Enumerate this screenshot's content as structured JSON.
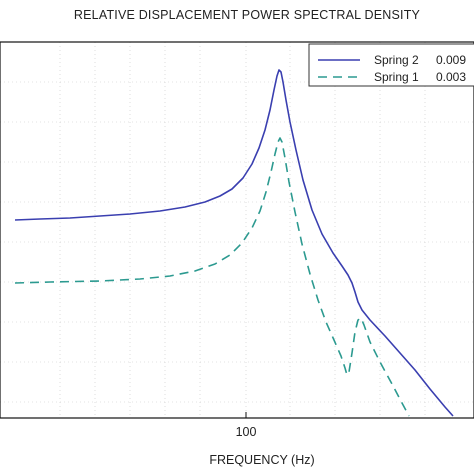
{
  "chart_data": {
    "type": "line",
    "title": "RELATIVE DISPLACEMENT  POWER SPECTRAL DENSITY",
    "xlabel": "FREQUENCY (Hz)",
    "ylabel": "",
    "x_scale": "log",
    "y_scale": "log",
    "x_ticks": [
      100
    ],
    "x_tick_labels": [
      "100"
    ],
    "grid": true,
    "legend_position": "top-right",
    "series": [
      {
        "name": "Spring 2",
        "legend_value": "0.009",
        "color": "#3a3fb0",
        "dash": "solid",
        "points": [
          [
            15,
            220
          ],
          [
            40,
            219
          ],
          [
            70,
            218
          ],
          [
            100,
            216
          ],
          [
            130,
            214
          ],
          [
            160,
            211
          ],
          [
            185,
            207
          ],
          [
            205,
            202
          ],
          [
            220,
            196
          ],
          [
            232,
            189
          ],
          [
            243,
            178
          ],
          [
            252,
            164
          ],
          [
            259,
            148
          ],
          [
            265,
            130
          ],
          [
            270,
            110
          ],
          [
            274,
            90
          ],
          [
            277,
            76
          ],
          [
            279,
            70
          ],
          [
            281,
            72
          ],
          [
            283,
            82
          ],
          [
            286,
            100
          ],
          [
            290,
            122
          ],
          [
            296,
            150
          ],
          [
            303,
            180
          ],
          [
            312,
            210
          ],
          [
            322,
            234
          ],
          [
            333,
            253
          ],
          [
            342,
            266
          ],
          [
            348,
            275
          ],
          [
            352,
            283
          ],
          [
            355,
            292
          ],
          [
            358,
            302
          ],
          [
            362,
            310
          ],
          [
            370,
            320
          ],
          [
            385,
            336
          ],
          [
            400,
            353
          ],
          [
            415,
            370
          ],
          [
            430,
            389
          ],
          [
            445,
            407
          ],
          [
            453,
            416
          ]
        ]
      },
      {
        "name": "Spring 1",
        "legend_value": "0.003",
        "color": "#2c9a90",
        "dash": "dashed",
        "points": [
          [
            15,
            283
          ],
          [
            50,
            282
          ],
          [
            100,
            281
          ],
          [
            140,
            279
          ],
          [
            170,
            276
          ],
          [
            195,
            271
          ],
          [
            215,
            264
          ],
          [
            230,
            255
          ],
          [
            242,
            243
          ],
          [
            252,
            228
          ],
          [
            260,
            211
          ],
          [
            266,
            192
          ],
          [
            271,
            172
          ],
          [
            275,
            154
          ],
          [
            278,
            142
          ],
          [
            280,
            138
          ],
          [
            282,
            142
          ],
          [
            285,
            158
          ],
          [
            289,
            182
          ],
          [
            295,
            212
          ],
          [
            302,
            244
          ],
          [
            310,
            274
          ],
          [
            318,
            300
          ],
          [
            326,
            322
          ],
          [
            334,
            340
          ],
          [
            341,
            356
          ],
          [
            345,
            368
          ],
          [
            347,
            375
          ],
          [
            349,
            372
          ],
          [
            352,
            353
          ],
          [
            355,
            332
          ],
          [
            358,
            320
          ],
          [
            361,
            318
          ],
          [
            364,
            325
          ],
          [
            370,
            342
          ],
          [
            380,
            362
          ],
          [
            392,
            384
          ],
          [
            402,
            403
          ],
          [
            409,
            416
          ]
        ]
      }
    ]
  }
}
